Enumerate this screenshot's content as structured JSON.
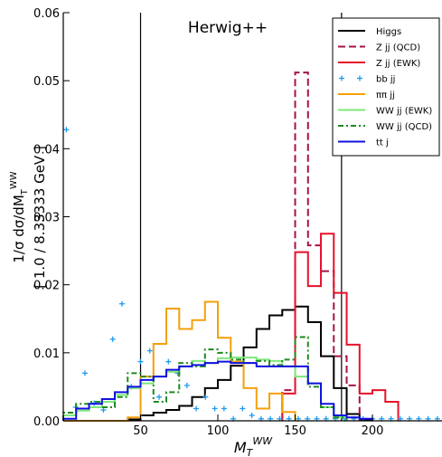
{
  "chart_data": {
    "type": "histogram",
    "title": "Herwig++",
    "ylabel_main": "1/σ dσ/dM",
    "ylabel_sub": "T",
    "ylabel_sup": "WW",
    "ylabel_bin": "[ 1.0 / 8.33333 GeV ]",
    "xlabel_main": "M",
    "xlabel_sub": "T",
    "xlabel_sup": "WW",
    "xlim": [
      0,
      245
    ],
    "ylim": [
      0,
      0.06
    ],
    "xticks": [
      50,
      100,
      150,
      200
    ],
    "yticks": [
      0.0,
      0.01,
      0.02,
      0.03,
      0.04,
      0.05,
      0.06
    ],
    "ytick_labels": [
      "0.00",
      "0.01",
      "0.02",
      "0.03",
      "0.04",
      "0.05",
      "0.06"
    ],
    "vlines": [
      50,
      180
    ],
    "bin_width": 8.33333,
    "grid": false,
    "legend_position": "top-right",
    "series": [
      {
        "name": "Higgs",
        "style": "step",
        "color": "#000000",
        "dash": "",
        "edges": [
          0,
          8.33,
          16.67,
          25,
          33.33,
          41.67,
          50,
          58.33,
          66.67,
          75,
          83.33,
          91.67,
          100,
          108.33,
          116.67,
          125,
          133.33,
          141.67,
          150,
          158.33,
          166.67,
          175,
          183.33,
          191.67,
          200
        ],
        "values": [
          0,
          0,
          0,
          0,
          0,
          0.0002,
          0.0008,
          0.0012,
          0.0016,
          0.0022,
          0.0035,
          0.0048,
          0.006,
          0.0081,
          0.0108,
          0.0135,
          0.0155,
          0.0163,
          0.0168,
          0.0145,
          0.0095,
          0.0048,
          0.001,
          0.0002
        ]
      },
      {
        "name": "Z jj (QCD)",
        "style": "step",
        "color": "#a6124a",
        "dash": "8,4",
        "edges": [
          141.67,
          150,
          158.33,
          166.67,
          175,
          183.33,
          191.67
        ],
        "values": [
          0.0045,
          0.0512,
          0.0258,
          0.022,
          0.0095,
          0.0052
        ]
      },
      {
        "name": "Z jj (EWK)",
        "style": "step",
        "color": "#e8102a",
        "dash": "",
        "edges": [
          141.67,
          150,
          158.33,
          166.67,
          175,
          183.33,
          191.67,
          200,
          208.33,
          216.67
        ],
        "values": [
          0.004,
          0.0248,
          0.0198,
          0.0275,
          0.0188,
          0.0112,
          0.004,
          0.0045,
          0.0028
        ]
      },
      {
        "name": "bb jj",
        "style": "markers",
        "color": "#1e9bf0",
        "dash": "",
        "x": [
          2,
          8,
          14,
          20,
          26,
          32,
          38,
          44,
          50,
          56,
          62,
          68,
          74,
          80,
          86,
          92,
          98,
          104,
          110,
          116,
          122,
          128,
          134,
          140,
          146,
          152,
          158,
          164,
          170,
          176,
          182,
          188,
          194,
          200,
          206,
          212,
          218,
          224,
          230,
          236,
          242
        ],
        "values": [
          0.0428,
          0.002,
          0.007,
          0.0026,
          0.0016,
          0.012,
          0.0172,
          0.005,
          0.0087,
          0.0103,
          0.0035,
          0.0087,
          0.007,
          0.0052,
          0.0018,
          0.0035,
          0.0018,
          0.0018,
          0.0003,
          0.0018,
          0.0008,
          0.0003,
          0.0003,
          0.0003,
          0.0003,
          0.0003,
          0.0003,
          0.0003,
          0.0003,
          0.0003,
          0.0003,
          0.0003,
          0.0003,
          0.0003,
          0.0003,
          0.0003,
          0.0003,
          0.0003,
          0.0003,
          0.0003,
          0.0003
        ]
      },
      {
        "name": "ππ jj",
        "style": "step",
        "color": "#f5a00a",
        "dash": "",
        "edges": [
          0,
          8.33,
          16.67,
          25,
          33.33,
          41.67,
          50,
          58.33,
          66.67,
          75,
          83.33,
          91.67,
          100,
          108.33,
          116.67,
          125,
          133.33,
          141.67,
          150
        ],
        "values": [
          0,
          0,
          0,
          0,
          0,
          0.0005,
          0.0065,
          0.0113,
          0.0165,
          0.0135,
          0.0148,
          0.0175,
          0.0122,
          0.0087,
          0.0048,
          0.0018,
          0.004,
          0.0013
        ]
      },
      {
        "name": "WW jj (EWK)",
        "style": "step",
        "color": "#7ee87a",
        "dash": "",
        "edges": [
          0,
          8.33,
          16.67,
          25,
          33.33,
          41.67,
          50,
          58.33,
          66.67,
          75,
          83.33,
          91.67,
          100,
          108.33,
          116.67,
          125,
          133.33,
          141.67,
          150,
          158.33,
          166.67,
          175,
          183.33
        ],
        "values": [
          0.0008,
          0.0015,
          0.002,
          0.0028,
          0.0038,
          0.0048,
          0.0055,
          0.0065,
          0.0072,
          0.008,
          0.0088,
          0.0085,
          0.0092,
          0.0093,
          0.0093,
          0.009,
          0.0088,
          0.008,
          0.0065,
          0.0055,
          0.002,
          0.0005
        ]
      },
      {
        "name": "WW jj (QCD)",
        "style": "step",
        "color": "#1e8a1e",
        "dash": "6,3,2,3",
        "edges": [
          0,
          8.33,
          16.67,
          25,
          33.33,
          41.67,
          50,
          58.33,
          66.67,
          75,
          83.33,
          91.67,
          100,
          108.33,
          116.67,
          125,
          133.33,
          141.67,
          150,
          158.33,
          166.67,
          175,
          183.33
        ],
        "values": [
          0.0012,
          0.0025,
          0.0028,
          0.002,
          0.0035,
          0.007,
          0.0065,
          0.0028,
          0.0042,
          0.0085,
          0.008,
          0.0105,
          0.01,
          0.009,
          0.0085,
          0.0088,
          0.0082,
          0.009,
          0.0123,
          0.005,
          0.002,
          0.0005
        ]
      },
      {
        "name": "tt j",
        "style": "step",
        "color": "#1010e0",
        "dash": "",
        "edges": [
          0,
          8.33,
          16.67,
          25,
          33.33,
          41.67,
          50,
          58.33,
          66.67,
          75,
          83.33,
          91.67,
          100,
          108.33,
          116.67,
          125,
          133.33,
          141.67,
          150,
          158.33,
          166.67,
          175,
          183.33,
          191.67,
          200
        ],
        "values": [
          0.0003,
          0.0018,
          0.0025,
          0.0032,
          0.0042,
          0.005,
          0.006,
          0.0065,
          0.0075,
          0.008,
          0.0082,
          0.0085,
          0.0087,
          0.0085,
          0.0085,
          0.008,
          0.008,
          0.008,
          0.008,
          0.0055,
          0.0025,
          0.0008,
          0.0005,
          0.0003
        ]
      }
    ],
    "legend": [
      {
        "label": "Higgs"
      },
      {
        "label": "Z jj (QCD)",
        "italic_prefix": "Z"
      },
      {
        "label": "Z jj (EWK)",
        "italic_prefix": "Z"
      },
      {
        "label": "bb jj",
        "italic_prefix": "bb̄"
      },
      {
        "label": "ππ jj",
        "italic_prefix": "π π̄"
      },
      {
        "label": "WW jj (EWK)"
      },
      {
        "label": "WW jj (QCD)"
      },
      {
        "label": "tt j",
        "italic_prefix": "t t̄"
      }
    ]
  }
}
